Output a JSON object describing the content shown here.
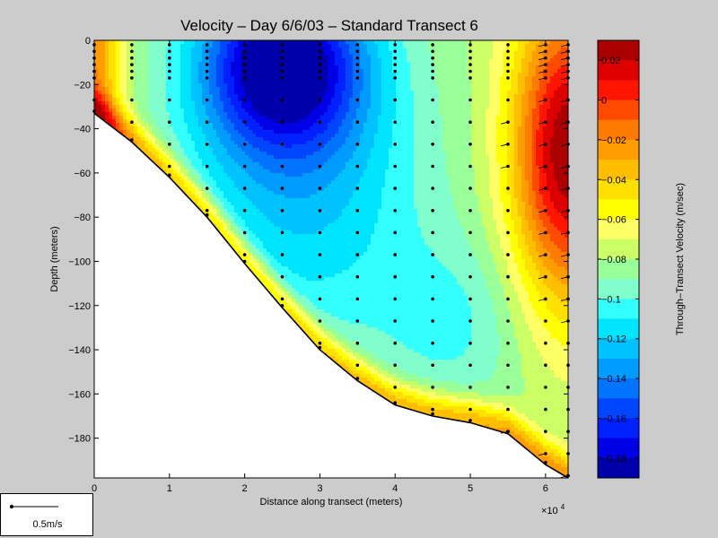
{
  "chart_data": {
    "type": "heatmap",
    "title": "Velocity – Day 6/6/03 – Standard Transect 6",
    "xlabel": "Distance along transect (meters)",
    "ylabel": "Depth (meters)",
    "x_multiplier_label": "×10",
    "x_multiplier_exponent": "4",
    "xlim": [
      0,
      6.3
    ],
    "ylim": [
      -198,
      0
    ],
    "x_ticks": [
      "0",
      "1",
      "2",
      "3",
      "4",
      "5",
      "6"
    ],
    "y_ticks": [
      "0",
      "−20",
      "−40",
      "−60",
      "−80",
      "−100",
      "−120",
      "−140",
      "−160",
      "−180"
    ],
    "colorbar": {
      "label": "Through–Transect Velocity (m/sec)",
      "range": [
        -0.19,
        0.03
      ],
      "ticks": [
        "0.02",
        "0",
        "−0.02",
        "−0.04",
        "−0.06",
        "−0.08",
        "−0.1",
        "−0.12",
        "−0.14",
        "−0.16",
        "−0.18"
      ],
      "levels": [
        {
          "lo": 0.02,
          "hi": 0.03,
          "color": "#aa0000"
        },
        {
          "lo": 0.01,
          "hi": 0.02,
          "color": "#dd0000"
        },
        {
          "lo": 0.0,
          "hi": 0.01,
          "color": "#ff1500"
        },
        {
          "lo": -0.01,
          "hi": 0.0,
          "color": "#ff4a00"
        },
        {
          "lo": -0.02,
          "hi": -0.01,
          "color": "#ff7a00"
        },
        {
          "lo": -0.03,
          "hi": -0.02,
          "color": "#ff9d00"
        },
        {
          "lo": -0.04,
          "hi": -0.03,
          "color": "#ffbf00"
        },
        {
          "lo": -0.05,
          "hi": -0.04,
          "color": "#ffe000"
        },
        {
          "lo": -0.06,
          "hi": -0.05,
          "color": "#ffff00"
        },
        {
          "lo": -0.07,
          "hi": -0.06,
          "color": "#ffff66"
        },
        {
          "lo": -0.08,
          "hi": -0.07,
          "color": "#ccff66"
        },
        {
          "lo": -0.09,
          "hi": -0.08,
          "color": "#99ff99"
        },
        {
          "lo": -0.1,
          "hi": -0.09,
          "color": "#80ffcc"
        },
        {
          "lo": -0.11,
          "hi": -0.1,
          "color": "#33ffff"
        },
        {
          "lo": -0.12,
          "hi": -0.11,
          "color": "#00e5ff"
        },
        {
          "lo": -0.13,
          "hi": -0.12,
          "color": "#00c2ff"
        },
        {
          "lo": -0.14,
          "hi": -0.13,
          "color": "#009bff"
        },
        {
          "lo": -0.15,
          "hi": -0.14,
          "color": "#0073ff"
        },
        {
          "lo": -0.16,
          "hi": -0.15,
          "color": "#0046ff"
        },
        {
          "lo": -0.17,
          "hi": -0.16,
          "color": "#0020ff"
        },
        {
          "lo": -0.18,
          "hi": -0.17,
          "color": "#0000e6"
        },
        {
          "lo": -0.19,
          "hi": -0.18,
          "color": "#0000aa"
        }
      ]
    },
    "seafloor": [
      {
        "x": 0.0,
        "depth": -33
      },
      {
        "x": 0.5,
        "depth": -46
      },
      {
        "x": 1.0,
        "depth": -62
      },
      {
        "x": 1.5,
        "depth": -80
      },
      {
        "x": 2.0,
        "depth": -101
      },
      {
        "x": 2.5,
        "depth": -121
      },
      {
        "x": 3.0,
        "depth": -140
      },
      {
        "x": 3.5,
        "depth": -154
      },
      {
        "x": 4.0,
        "depth": -165
      },
      {
        "x": 4.5,
        "depth": -170
      },
      {
        "x": 5.0,
        "depth": -173
      },
      {
        "x": 5.5,
        "depth": -178
      },
      {
        "x": 6.0,
        "depth": -192
      },
      {
        "x": 6.3,
        "depth": -198
      }
    ],
    "stations_x": [
      0.0,
      0.5,
      1.0,
      1.5,
      2.0,
      2.5,
      3.0,
      3.5,
      4.0,
      4.5,
      5.0,
      5.5,
      6.0,
      6.3
    ],
    "vector_scale": {
      "label": "0.5m/s"
    }
  }
}
